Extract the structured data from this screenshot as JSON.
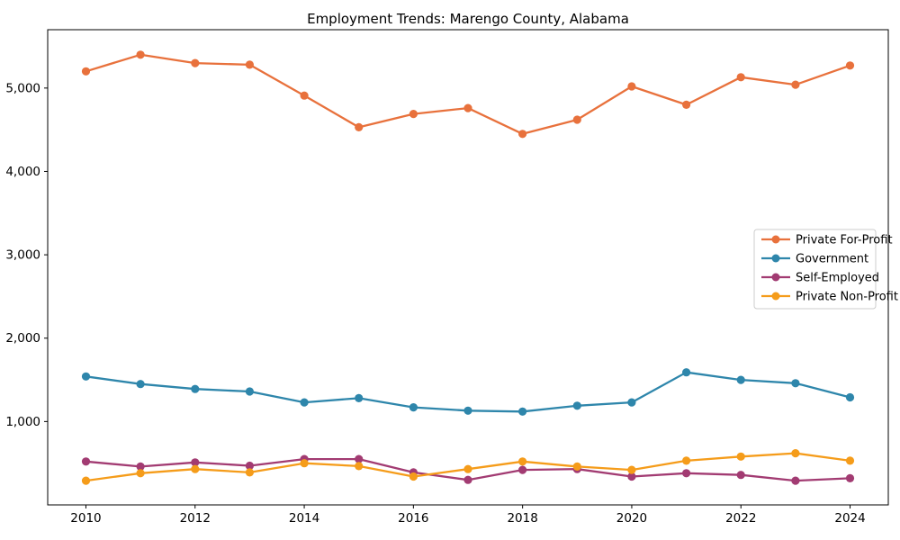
{
  "window": {
    "background": "#ffffff"
  },
  "chart_data": {
    "type": "line",
    "title": "Employment Trends: Marengo County, Alabama",
    "xlabel": "",
    "ylabel": "",
    "x": [
      2010,
      2011,
      2012,
      2013,
      2014,
      2015,
      2016,
      2017,
      2018,
      2019,
      2020,
      2021,
      2022,
      2023,
      2024
    ],
    "xticks": [
      2010,
      2012,
      2014,
      2016,
      2018,
      2020,
      2022,
      2024
    ],
    "xtick_labels": [
      "2010",
      "2012",
      "2014",
      "2016",
      "2018",
      "2020",
      "2022",
      "2024"
    ],
    "yticks": [
      1000,
      2000,
      3000,
      4000,
      5000
    ],
    "ytick_labels": [
      "1,000",
      "2,000",
      "3,000",
      "4,000",
      "5,000"
    ],
    "xlim": [
      2009.3,
      2024.7
    ],
    "ylim": [
      0,
      5700
    ],
    "grid": false,
    "legend": {
      "position": "center-right",
      "background": "#ffffff",
      "border_color": "#cccccc",
      "entries": [
        "Private For-Profit",
        "Government",
        "Self-Employed",
        "Private Non-Profit"
      ]
    },
    "axes": {
      "frame_color": "#000000",
      "tick_color": "#000000",
      "tick_label_color": "#000000"
    },
    "series": [
      {
        "name": "Private For-Profit",
        "color": "#E8713C",
        "values": [
          5200,
          5400,
          5300,
          5280,
          4910,
          4530,
          4690,
          4760,
          4450,
          4620,
          5020,
          4800,
          5130,
          5040,
          5270
        ]
      },
      {
        "name": "Government",
        "color": "#2E86AB",
        "values": [
          1540,
          1450,
          1390,
          1360,
          1230,
          1280,
          1170,
          1130,
          1120,
          1190,
          1230,
          1590,
          1500,
          1460,
          1290
        ]
      },
      {
        "name": "Self-Employed",
        "color": "#A23B72",
        "values": [
          520,
          460,
          510,
          470,
          550,
          550,
          390,
          300,
          420,
          430,
          340,
          380,
          360,
          290,
          320
        ]
      },
      {
        "name": "Private Non-Profit",
        "color": "#F59C1A",
        "values": [
          290,
          380,
          430,
          390,
          500,
          465,
          340,
          430,
          520,
          460,
          420,
          530,
          580,
          620,
          530
        ]
      }
    ]
  }
}
